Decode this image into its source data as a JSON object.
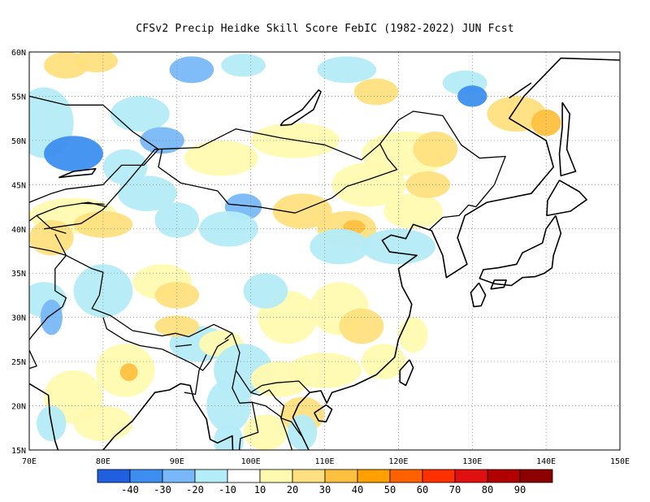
{
  "title": "CFSv2 Precip Heidke Skill Score FebIC (1982-2022) JUN Fcst",
  "map": {
    "lon_labels": [
      "70E",
      "80E",
      "90E",
      "100E",
      "110E",
      "120E",
      "130E",
      "140E",
      "150E"
    ],
    "lat_labels": [
      "15N",
      "20N",
      "25N",
      "30N",
      "35N",
      "40N",
      "45N",
      "50N",
      "55N",
      "60N"
    ],
    "lon_range": [
      70,
      150
    ],
    "lat_range": [
      15,
      60
    ]
  },
  "colorbar": {
    "colors": [
      "#1f5fe0",
      "#3c8ff0",
      "#78b8f8",
      "#b4ecf8",
      "#ffffff",
      "#fffab0",
      "#ffe080",
      "#ffc040",
      "#ffa000",
      "#ff6000",
      "#ff3000",
      "#e01010",
      "#b00000",
      "#8c0000"
    ],
    "labels": [
      "-40",
      "-30",
      "-20",
      "-10",
      "10",
      "20",
      "30",
      "40",
      "50",
      "60",
      "70",
      "80",
      "90"
    ]
  },
  "legend_note": "",
  "icons": {
    "coastline": "coastline-outline"
  }
}
